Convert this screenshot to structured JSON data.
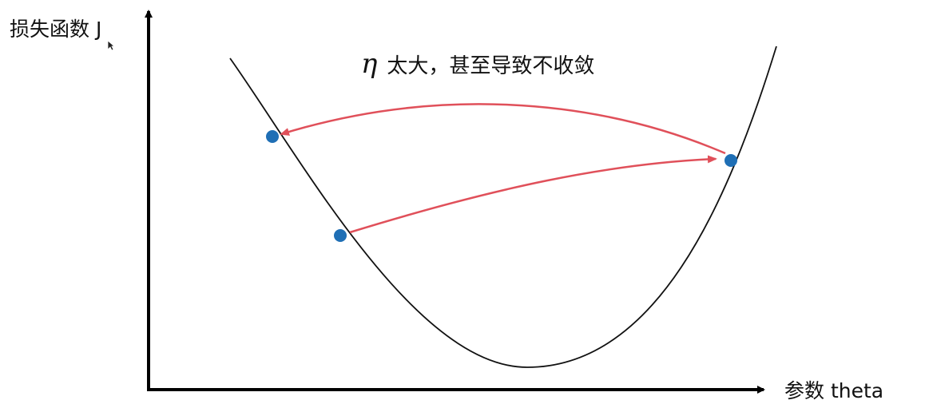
{
  "labels": {
    "y_axis": "损失函数 J",
    "x_axis": "参数 theta",
    "eta": "η",
    "annotation": "太大，甚至导致不收敛"
  },
  "colors": {
    "curve": "#111111",
    "axis": "#000000",
    "point": "#1f6fb5",
    "arrow": "#e0505a"
  },
  "icons": {
    "cursor": "mouse-pointer-icon"
  }
}
